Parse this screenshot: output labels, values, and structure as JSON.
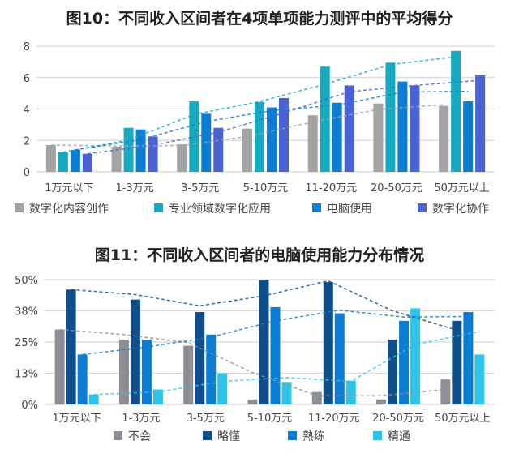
{
  "chart_data": [
    {
      "type": "bar",
      "title": "图10：不同收入区间者在4项单项能力测评中的平均得分",
      "categories": [
        "1万元以下",
        "1-3万元",
        "3-5万元",
        "5-10万元",
        "11-20万元",
        "20-50万元",
        "50万元以上"
      ],
      "ylim": [
        0,
        8
      ],
      "yticks": [
        "0",
        "2",
        "4",
        "6",
        "8"
      ],
      "ytick_values": [
        0,
        2,
        4,
        6,
        8
      ],
      "grid": true,
      "legend_position": "bottom",
      "trendlines": "dashed moving average",
      "series": [
        {
          "name": "数字化内容创作",
          "color": "#a3a3a3",
          "values": [
            1.7,
            1.6,
            1.75,
            2.75,
            3.6,
            4.35,
            4.2
          ]
        },
        {
          "name": "专业领域数字化应用",
          "color": "#17a9c0",
          "values": [
            1.25,
            2.8,
            4.5,
            4.45,
            6.7,
            6.95,
            7.7
          ]
        },
        {
          "name": "电脑使用",
          "color": "#0b7dd2",
          "values": [
            1.4,
            2.7,
            3.7,
            4.1,
            4.4,
            5.75,
            4.5
          ]
        },
        {
          "name": "数字化协作",
          "color": "#4a62d4",
          "values": [
            1.15,
            2.25,
            2.8,
            4.7,
            5.5,
            5.5,
            6.15
          ]
        }
      ]
    },
    {
      "type": "bar",
      "title": "图11：不同收入区间者的电脑使用能力分布情况",
      "categories": [
        "1万元以下",
        "1-3万元",
        "3-5万元",
        "5-10万元",
        "11-20万元",
        "20-50万元",
        "50万元以上"
      ],
      "ylim": [
        0,
        50
      ],
      "yticks": [
        "0%",
        "13%",
        "25%",
        "38%",
        "50%"
      ],
      "ytick_values": [
        0,
        12.5,
        25,
        37.5,
        50
      ],
      "grid": true,
      "legend_position": "bottom",
      "trendlines": "dashed moving average",
      "series": [
        {
          "name": "不会",
          "color": "#8e8e96",
          "values": [
            30,
            26,
            23.5,
            2,
            5,
            2,
            10
          ]
        },
        {
          "name": "略懂",
          "color": "#0e4f8b",
          "values": [
            46,
            42,
            37,
            50,
            49,
            26,
            33.5
          ]
        },
        {
          "name": "熟练",
          "color": "#0b7dd2",
          "values": [
            20,
            26,
            28,
            39,
            36.5,
            33.5,
            37
          ]
        },
        {
          "name": "精通",
          "color": "#2fc3ea",
          "values": [
            4,
            6,
            12.5,
            9,
            9.5,
            38.5,
            20
          ]
        }
      ]
    }
  ]
}
